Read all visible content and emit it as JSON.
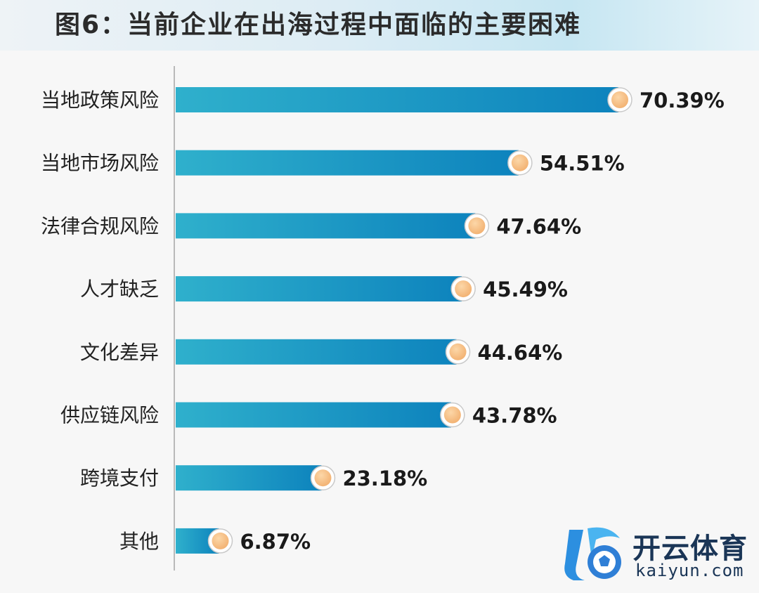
{
  "title": "图6：当前企业在出海过程中面临的主要困难",
  "chart_data": {
    "type": "bar",
    "orientation": "horizontal",
    "categories": [
      "当地政策风险",
      "当地市场风险",
      "法律合规风险",
      "人才缺乏",
      "文化差异",
      "供应链风险",
      "跨境支付",
      "其他"
    ],
    "values": [
      70.39,
      54.51,
      47.64,
      45.49,
      44.64,
      43.78,
      23.18,
      6.87
    ],
    "value_labels": [
      "70.39%",
      "54.51%",
      "47.64%",
      "45.49%",
      "44.64%",
      "43.78%",
      "23.18%",
      "6.87%"
    ],
    "unit": "%",
    "xlim": [
      0,
      100
    ],
    "grid": false,
    "legend": "none",
    "colors": {
      "bar_start": "#2fb0cc",
      "bar_end": "#0d83bd",
      "marker": "#f2b070",
      "marker_ring": "#ffffff",
      "axis": "#b9b9b9"
    }
  },
  "watermark": {
    "brand_cn": "开云体育",
    "brand_en": "kaiyun.com"
  }
}
